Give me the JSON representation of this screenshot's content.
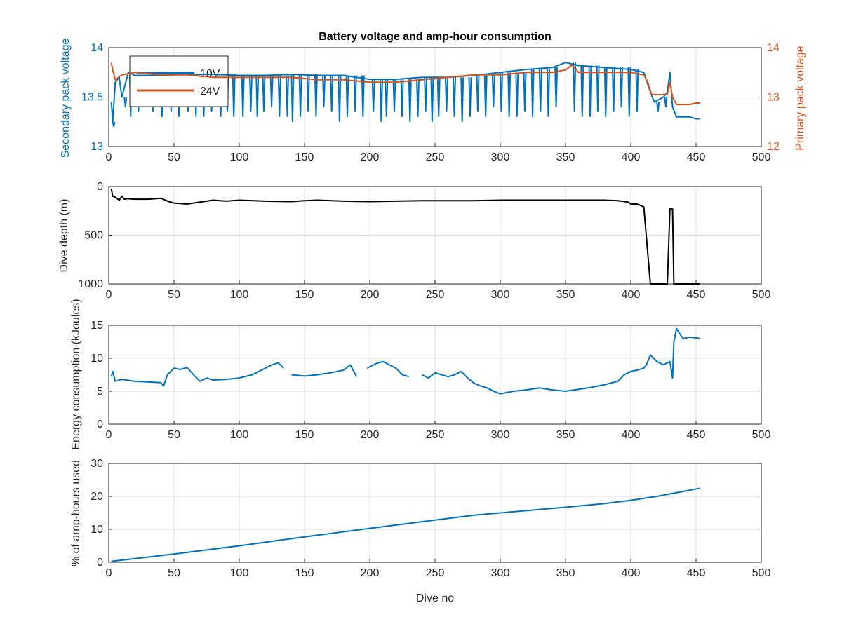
{
  "chart_data": [
    {
      "type": "line",
      "title": "Battery voltage and amp-hour consumption",
      "xlabel": "",
      "ylabel": "Secondary pack voltage",
      "ylabel_right": "Primary pack voltage",
      "xlim": [
        0,
        500
      ],
      "ylim": [
        13,
        14
      ],
      "ylim_right": [
        12,
        14
      ],
      "xticks": [
        0,
        50,
        100,
        150,
        200,
        250,
        300,
        350,
        400,
        450,
        500
      ],
      "yticks": [
        13,
        13.5,
        14
      ],
      "ytick_labels": [
        "13",
        "13.5",
        "14"
      ],
      "yticks_right": [
        12,
        13,
        14
      ],
      "ytick_labels_right": [
        "12",
        "13",
        "14"
      ],
      "grid": true,
      "legend": {
        "placement": "top-left",
        "entries": [
          "10V",
          "24V"
        ]
      },
      "series": [
        {
          "name": "10V",
          "axis": "left",
          "color": "#0072BD",
          "x": [
            2,
            3,
            5,
            8,
            10,
            15,
            20,
            40,
            60,
            80,
            100,
            120,
            140,
            160,
            180,
            200,
            220,
            240,
            260,
            280,
            300,
            320,
            340,
            350,
            360,
            380,
            400,
            410,
            415,
            418,
            425,
            428,
            430,
            432,
            435,
            440,
            445,
            450,
            453
          ],
          "y": [
            13.45,
            13.25,
            13.65,
            13.7,
            13.5,
            13.75,
            13.72,
            13.72,
            13.73,
            13.73,
            13.72,
            13.72,
            13.73,
            13.72,
            13.72,
            13.68,
            13.68,
            13.7,
            13.7,
            13.72,
            13.75,
            13.78,
            13.8,
            13.85,
            13.82,
            13.8,
            13.78,
            13.75,
            13.55,
            13.45,
            13.5,
            13.55,
            13.75,
            13.4,
            13.3,
            13.3,
            13.3,
            13.28,
            13.28
          ],
          "dip_x": [
            3,
            12,
            16,
            22,
            28,
            33,
            40,
            47,
            53,
            60,
            66,
            72,
            78,
            85,
            90,
            95,
            102,
            108,
            113,
            118,
            124,
            130,
            136,
            140,
            146,
            152,
            158,
            164,
            170,
            176,
            182,
            188,
            194,
            202,
            208,
            212,
            218,
            224,
            230,
            236,
            242,
            247,
            252,
            258,
            264,
            270,
            276,
            282,
            288,
            294,
            300,
            306,
            312,
            318,
            324,
            330,
            336,
            342,
            356,
            362,
            368,
            374,
            380,
            386,
            392,
            398,
            404,
            420,
            426
          ],
          "dip_y": [
            13.2,
            13.4,
            13.3,
            13.35,
            13.4,
            13.35,
            13.3,
            13.35,
            13.3,
            13.35,
            13.3,
            13.3,
            13.35,
            13.3,
            13.35,
            13.3,
            13.3,
            13.35,
            13.3,
            13.35,
            13.4,
            13.3,
            13.3,
            13.25,
            13.3,
            13.35,
            13.3,
            13.4,
            13.35,
            13.25,
            13.3,
            13.35,
            13.3,
            13.35,
            13.25,
            13.3,
            13.35,
            13.3,
            13.25,
            13.3,
            13.35,
            13.25,
            13.3,
            13.35,
            13.3,
            13.25,
            13.3,
            13.35,
            13.3,
            13.4,
            13.35,
            13.3,
            13.3,
            13.35,
            13.3,
            13.35,
            13.3,
            13.4,
            13.35,
            13.3,
            13.3,
            13.35,
            13.3,
            13.35,
            13.4,
            13.3,
            13.35,
            13.35,
            13.4
          ]
        },
        {
          "name": "24V",
          "axis": "right",
          "color": "#D95319",
          "x": [
            2,
            3,
            5,
            10,
            20,
            40,
            60,
            80,
            100,
            120,
            140,
            160,
            180,
            200,
            210,
            220,
            240,
            260,
            280,
            300,
            320,
            340,
            350,
            355,
            360,
            380,
            400,
            410,
            413,
            416,
            420,
            428,
            430,
            432,
            435,
            440,
            445,
            450,
            453
          ],
          "y": [
            13.7,
            13.55,
            13.35,
            13.45,
            13.5,
            13.45,
            13.45,
            13.4,
            13.4,
            13.4,
            13.4,
            13.35,
            13.35,
            13.3,
            13.3,
            13.3,
            13.35,
            13.4,
            13.45,
            13.45,
            13.5,
            13.5,
            13.55,
            13.65,
            13.5,
            13.5,
            13.5,
            13.45,
            13.3,
            13.05,
            13.05,
            13.05,
            13.3,
            13.0,
            12.85,
            12.85,
            12.85,
            12.88,
            12.88
          ]
        }
      ]
    },
    {
      "type": "line",
      "title": "",
      "xlabel": "",
      "ylabel": "Dive depth (m)",
      "xlim": [
        0,
        500
      ],
      "ylim": [
        0,
        1000
      ],
      "y_reversed": true,
      "xticks": [
        0,
        50,
        100,
        150,
        200,
        250,
        300,
        350,
        400,
        450,
        500
      ],
      "yticks": [
        0,
        500,
        1000
      ],
      "ytick_labels": [
        "0",
        "500",
        "1000"
      ],
      "grid": true,
      "series": [
        {
          "color": "#000000",
          "x": [
            2,
            3,
            5,
            8,
            10,
            12,
            14,
            20,
            30,
            40,
            45,
            50,
            55,
            60,
            70,
            80,
            90,
            100,
            120,
            140,
            150,
            160,
            180,
            200,
            220,
            240,
            260,
            280,
            300,
            320,
            340,
            350,
            360,
            380,
            390,
            398,
            400,
            405,
            410,
            415,
            420,
            425,
            428,
            430,
            432,
            433,
            435,
            440,
            445,
            450,
            453
          ],
          "y": [
            20,
            100,
            110,
            140,
            100,
            130,
            125,
            130,
            130,
            120,
            150,
            170,
            175,
            180,
            160,
            140,
            150,
            140,
            150,
            155,
            145,
            140,
            150,
            155,
            150,
            145,
            145,
            145,
            140,
            140,
            140,
            140,
            140,
            140,
            145,
            160,
            180,
            180,
            210,
            1000,
            1000,
            1000,
            1000,
            230,
            230,
            1000,
            1000,
            1000,
            1000,
            1000,
            1000
          ]
        }
      ]
    },
    {
      "type": "line",
      "title": "",
      "xlabel": "",
      "ylabel": "Energy consumption (kJoules)",
      "xlim": [
        0,
        500
      ],
      "ylim": [
        0,
        15
      ],
      "xticks": [
        0,
        50,
        100,
        150,
        200,
        250,
        300,
        350,
        400,
        450,
        500
      ],
      "yticks": [
        0,
        5,
        10,
        15
      ],
      "ytick_labels": [
        "0",
        "5",
        "10",
        "15"
      ],
      "grid": true,
      "series": [
        {
          "color": "#0072BD",
          "x": [
            2,
            3,
            5,
            10,
            20,
            30,
            40,
            42,
            45,
            50,
            55,
            60,
            65,
            70,
            75,
            80,
            90,
            100,
            110,
            120,
            125,
            130,
            134,
            138,
            140,
            150,
            160,
            170,
            180,
            185,
            190,
            195,
            198,
            205,
            210,
            215,
            220,
            225,
            230,
            235,
            240,
            245,
            250,
            255,
            260,
            265,
            270,
            275,
            280,
            285,
            290,
            295,
            300,
            305,
            310,
            320,
            330,
            340,
            350,
            360,
            370,
            380,
            390,
            395,
            400,
            405,
            410,
            412,
            415,
            420,
            425,
            430,
            432,
            433,
            435,
            440,
            445,
            450,
            453
          ],
          "y": [
            7.2,
            8.0,
            6.5,
            6.8,
            6.5,
            6.4,
            6.3,
            5.8,
            7.5,
            8.5,
            8.3,
            8.6,
            7.5,
            6.5,
            7.0,
            6.7,
            6.8,
            7.0,
            7.5,
            8.5,
            9.0,
            9.3,
            8.5,
            null,
            7.5,
            7.3,
            7.5,
            7.8,
            8.2,
            9.0,
            7.2,
            null,
            8.5,
            9.2,
            9.5,
            9.0,
            8.5,
            7.5,
            7.2,
            null,
            7.5,
            7.0,
            7.8,
            7.5,
            7.2,
            7.5,
            8.0,
            7.0,
            6.2,
            5.8,
            5.5,
            5.0,
            4.6,
            4.8,
            5.0,
            5.2,
            5.5,
            5.2,
            5.0,
            5.3,
            5.6,
            6.0,
            6.5,
            7.5,
            8.0,
            8.2,
            8.5,
            9.0,
            10.5,
            9.5,
            9.0,
            9.5,
            7.0,
            12.5,
            14.5,
            13.0,
            13.2,
            13.1,
            13.0
          ]
        }
      ]
    },
    {
      "type": "line",
      "title": "",
      "xlabel": "Dive no",
      "ylabel": "% of amp-hours used",
      "xlim": [
        0,
        500
      ],
      "ylim": [
        0,
        30
      ],
      "xticks": [
        0,
        50,
        100,
        150,
        200,
        250,
        300,
        350,
        400,
        450,
        500
      ],
      "yticks": [
        0,
        10,
        20,
        30
      ],
      "ytick_labels": [
        "0",
        "10",
        "20",
        "30"
      ],
      "grid": true,
      "series": [
        {
          "color": "#0072BD",
          "x": [
            2,
            50,
            100,
            150,
            200,
            250,
            280,
            300,
            350,
            380,
            400,
            420,
            440,
            453
          ],
          "y": [
            0.3,
            2.5,
            5.0,
            7.7,
            10.3,
            12.8,
            14.3,
            15.0,
            16.7,
            17.8,
            18.8,
            20.0,
            21.5,
            22.5
          ]
        }
      ]
    }
  ]
}
